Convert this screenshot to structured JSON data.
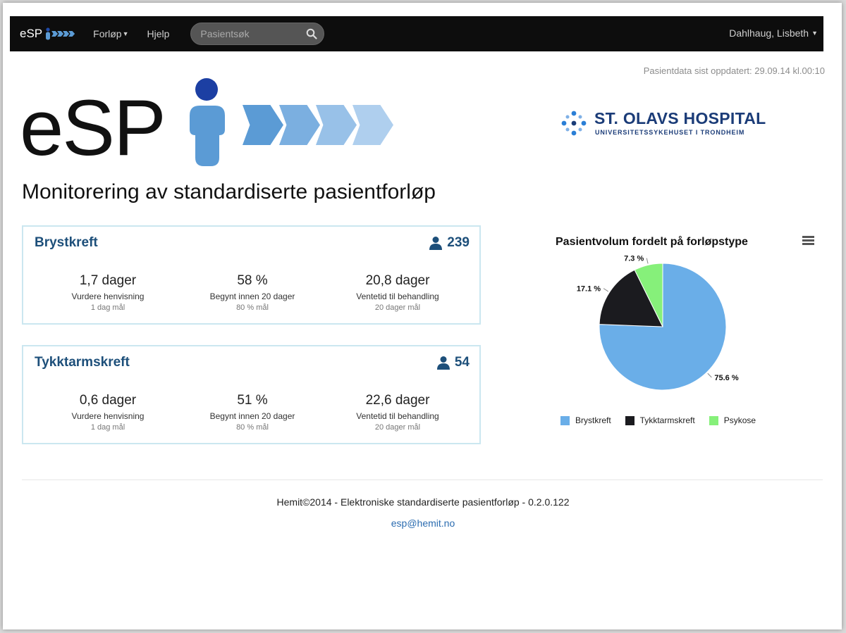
{
  "navbar": {
    "brand": "eSP",
    "items": [
      "Forløp",
      "Hjelp"
    ],
    "search_placeholder": "Pasientsøk",
    "user": "Dahlhaug, Lisbeth"
  },
  "updated": "Pasientdata sist oppdatert: 29.09.14 kl.00:10",
  "logo": {
    "text": "eSP"
  },
  "hospital": {
    "name": "ST. OLAVS HOSPITAL",
    "subtitle": "UNIVERSITETSSYKEHUSET I TRONDHEIM"
  },
  "page_title": "Monitorering av standardiserte pasientforløp",
  "cards": [
    {
      "title": "Brystkreft",
      "count": "239",
      "metrics": [
        {
          "value": "1,7 dager",
          "label": "Vurdere henvisning",
          "goal": "1 dag mål"
        },
        {
          "value": "58 %",
          "label": "Begynt innen 20 dager",
          "goal": "80 % mål"
        },
        {
          "value": "20,8 dager",
          "label": "Ventetid til behandling",
          "goal": "20 dager mål"
        }
      ]
    },
    {
      "title": "Tykktarmskreft",
      "count": "54",
      "metrics": [
        {
          "value": "0,6 dager",
          "label": "Vurdere henvisning",
          "goal": "1 dag mål"
        },
        {
          "value": "51 %",
          "label": "Begynt innen 20 dager",
          "goal": "80 % mål"
        },
        {
          "value": "22,6 dager",
          "label": "Ventetid til behandling",
          "goal": "20 dager mål"
        }
      ]
    }
  ],
  "chart_data": {
    "type": "pie",
    "title": "Pasientvolum fordelt på forløpstype",
    "series": [
      {
        "name": "Brystkreft",
        "value": 75.6,
        "label": "75.6 %",
        "color": "#6aaee8"
      },
      {
        "name": "Tykktarmskreft",
        "value": 17.1,
        "label": "17.1 %",
        "color": "#1b1b1f"
      },
      {
        "name": "Psykose",
        "value": 7.3,
        "label": "7.3 %",
        "color": "#86f07a"
      }
    ],
    "legend_position": "bottom"
  },
  "footer": {
    "text": "Hemit©2014 - Elektroniske standardiserte pasientforløp - 0.2.0.122",
    "email": "esp@hemit.no"
  },
  "colors": {
    "accent": "#1d4f7a",
    "logo_blue": "#5b9bd5",
    "card_border": "#cbe7f0"
  }
}
